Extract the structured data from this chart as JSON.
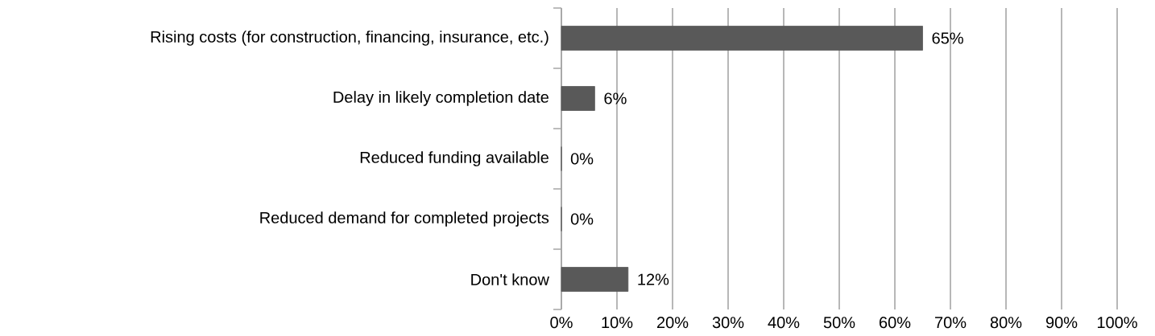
{
  "chart_data": {
    "type": "bar",
    "orientation": "horizontal",
    "categories": [
      "Rising costs (for construction, financing, insurance, etc.)",
      "Delay in likely completion date",
      "Reduced funding available",
      "Reduced demand for completed projects",
      "Don't know"
    ],
    "values": [
      65,
      6,
      0,
      0,
      12
    ],
    "value_labels": [
      "65%",
      "6%",
      "0%",
      "0%",
      "12%"
    ],
    "color": "#595959",
    "xlim": [
      0,
      100
    ],
    "xticks": [
      {
        "value": 0,
        "label": "0%"
      },
      {
        "value": 10,
        "label": "10%"
      },
      {
        "value": 20,
        "label": "20%"
      },
      {
        "value": 30,
        "label": "30%"
      },
      {
        "value": 40,
        "label": "40%"
      },
      {
        "value": 50,
        "label": "50%"
      },
      {
        "value": 60,
        "label": "60%"
      },
      {
        "value": 70,
        "label": "70%"
      },
      {
        "value": 80,
        "label": "80%"
      },
      {
        "value": 90,
        "label": "90%"
      },
      {
        "value": 100,
        "label": "100%"
      }
    ],
    "grid": "x"
  }
}
